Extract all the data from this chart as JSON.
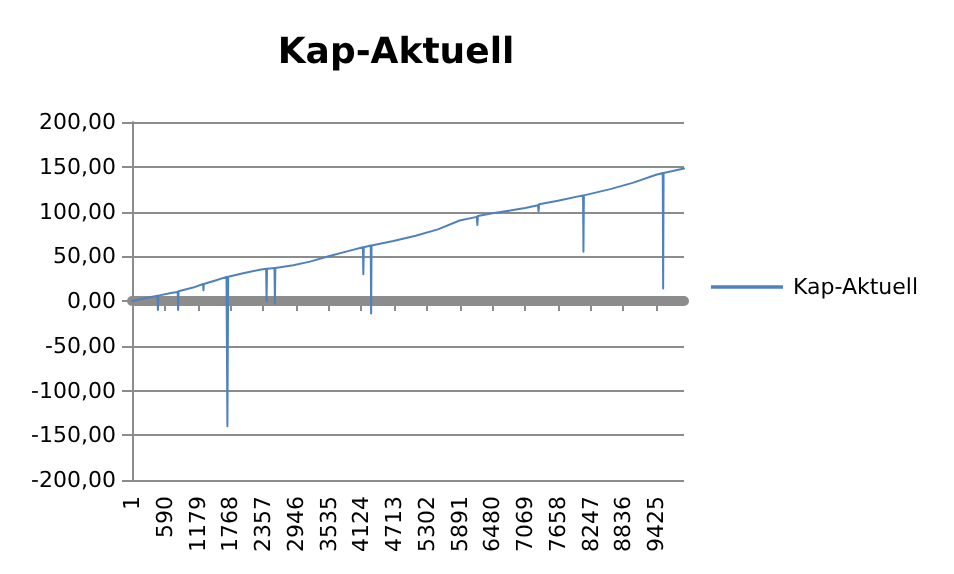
{
  "chart_data": {
    "type": "line",
    "title": "Kap-Aktuell",
    "x": [
      1,
      300,
      460,
      467,
      475,
      700,
      823,
      830,
      838,
      1100,
      1280,
      1286,
      1292,
      1500,
      1700,
      1716,
      1730,
      2000,
      2300,
      2413,
      2420,
      2428,
      2563,
      2570,
      2578,
      2900,
      3200,
      3535,
      3900,
      4153,
      4160,
      4168,
      4293,
      4300,
      4308,
      4700,
      5100,
      5500,
      5891,
      6200,
      6210,
      6220,
      6480,
      6800,
      7069,
      7300,
      7310,
      7320,
      7658,
      8110,
      8117,
      8125,
      8600,
      9000,
      9425,
      9543,
      9550,
      9558,
      9925
    ],
    "series": [
      {
        "name": "Kap-Aktuell",
        "color": "#4f81bd",
        "values": [
          0,
          4,
          6,
          -10,
          6,
          9,
          10,
          -10,
          11,
          15,
          19,
          12,
          19,
          23,
          27,
          -140,
          27,
          31,
          35,
          36,
          0,
          36,
          37,
          -3,
          37,
          40,
          44,
          50,
          56,
          60,
          30,
          60,
          62,
          -14,
          62,
          67,
          73,
          80,
          90,
          94,
          85,
          95,
          98,
          101,
          104,
          107,
          100,
          108,
          112,
          118,
          55,
          118,
          125,
          132,
          141,
          143,
          14,
          143,
          148
        ]
      }
    ],
    "xlim": [
      1,
      9925
    ],
    "xticks": [
      1,
      590,
      1179,
      1768,
      2357,
      2946,
      3535,
      4124,
      4713,
      5302,
      5891,
      6480,
      7069,
      7658,
      8247,
      8836,
      9425
    ],
    "ylim": [
      -200,
      200
    ],
    "yticks": [
      {
        "value": -200,
        "label": "-200,00"
      },
      {
        "value": -150,
        "label": "-150,00"
      },
      {
        "value": -100,
        "label": "-100,00"
      },
      {
        "value": -50,
        "label": "-50,00"
      },
      {
        "value": 0,
        "label": "0,00"
      },
      {
        "value": 50,
        "label": "50,00"
      },
      {
        "value": 100,
        "label": "100,00"
      },
      {
        "value": 150,
        "label": "150,00"
      },
      {
        "value": 200,
        "label": "200,00"
      }
    ],
    "grid": "y",
    "legend": "right",
    "marker": "none",
    "line_style": "solid"
  }
}
